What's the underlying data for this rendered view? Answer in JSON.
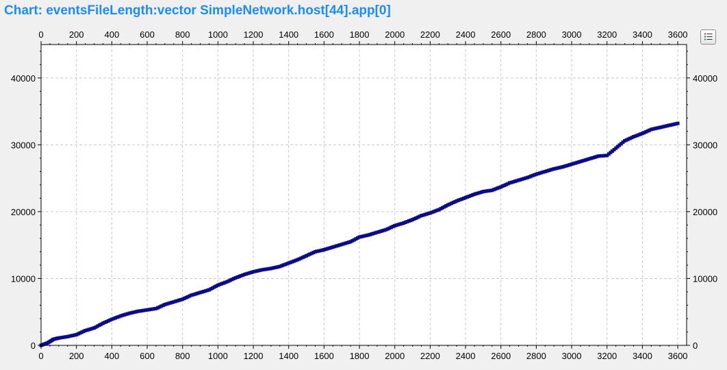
{
  "title": "Chart: eventsFileLength:vector SimpleNetwork.host[44].app[0]",
  "legend_button": {
    "icon": "legend-list-icon"
  },
  "colors": {
    "title": "#1a8cff",
    "series": "#0a0a8a",
    "background": "#f0f0f0",
    "plot_background": "#ffffff",
    "grid": "#c8c8c8"
  },
  "chart_data": {
    "type": "line",
    "title": "Chart: eventsFileLength:vector SimpleNetwork.host[44].app[0]",
    "xlabel": "",
    "ylabel": "",
    "xlim": [
      0,
      3650
    ],
    "ylim": [
      0,
      45000
    ],
    "grid": true,
    "x_ticks": [
      0,
      200,
      400,
      600,
      800,
      1000,
      1200,
      1400,
      1600,
      1800,
      2000,
      2200,
      2400,
      2600,
      2800,
      3000,
      3200,
      3400,
      3600
    ],
    "y_ticks": [
      0,
      10000,
      20000,
      30000,
      40000
    ],
    "series": [
      {
        "name": "eventsFileLength:vector SimpleNetwork.host[44].app[0]",
        "points": [
          [
            0,
            0
          ],
          [
            40,
            400
          ],
          [
            70,
            900
          ],
          [
            100,
            1100
          ],
          [
            150,
            1300
          ],
          [
            200,
            1600
          ],
          [
            250,
            2200
          ],
          [
            300,
            2600
          ],
          [
            350,
            3300
          ],
          [
            400,
            3900
          ],
          [
            450,
            4400
          ],
          [
            500,
            4800
          ],
          [
            550,
            5100
          ],
          [
            600,
            5300
          ],
          [
            650,
            5500
          ],
          [
            700,
            6100
          ],
          [
            750,
            6500
          ],
          [
            800,
            6900
          ],
          [
            850,
            7500
          ],
          [
            900,
            7900
          ],
          [
            950,
            8300
          ],
          [
            1000,
            9000
          ],
          [
            1050,
            9500
          ],
          [
            1100,
            10100
          ],
          [
            1150,
            10600
          ],
          [
            1200,
            11000
          ],
          [
            1250,
            11300
          ],
          [
            1300,
            11500
          ],
          [
            1350,
            11800
          ],
          [
            1400,
            12300
          ],
          [
            1450,
            12800
          ],
          [
            1500,
            13400
          ],
          [
            1550,
            14000
          ],
          [
            1600,
            14300
          ],
          [
            1650,
            14700
          ],
          [
            1700,
            15100
          ],
          [
            1750,
            15500
          ],
          [
            1800,
            16200
          ],
          [
            1850,
            16500
          ],
          [
            1900,
            16900
          ],
          [
            1950,
            17300
          ],
          [
            2000,
            17900
          ],
          [
            2050,
            18300
          ],
          [
            2100,
            18800
          ],
          [
            2150,
            19400
          ],
          [
            2200,
            19800
          ],
          [
            2250,
            20300
          ],
          [
            2300,
            21000
          ],
          [
            2350,
            21600
          ],
          [
            2400,
            22100
          ],
          [
            2450,
            22600
          ],
          [
            2500,
            23000
          ],
          [
            2550,
            23200
          ],
          [
            2600,
            23700
          ],
          [
            2650,
            24300
          ],
          [
            2700,
            24700
          ],
          [
            2750,
            25100
          ],
          [
            2800,
            25600
          ],
          [
            2850,
            26000
          ],
          [
            2900,
            26400
          ],
          [
            2950,
            26700
          ],
          [
            3000,
            27100
          ],
          [
            3050,
            27500
          ],
          [
            3100,
            27900
          ],
          [
            3150,
            28300
          ],
          [
            3200,
            28400
          ],
          [
            3250,
            29500
          ],
          [
            3300,
            30600
          ],
          [
            3350,
            31200
          ],
          [
            3400,
            31700
          ],
          [
            3450,
            32300
          ],
          [
            3500,
            32600
          ],
          [
            3550,
            32900
          ],
          [
            3600,
            33200
          ]
        ]
      }
    ]
  }
}
